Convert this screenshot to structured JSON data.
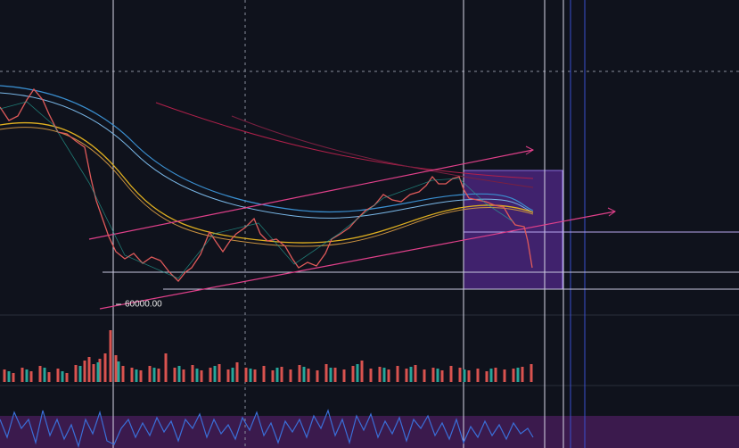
{
  "price_label": "60000.00"
}
